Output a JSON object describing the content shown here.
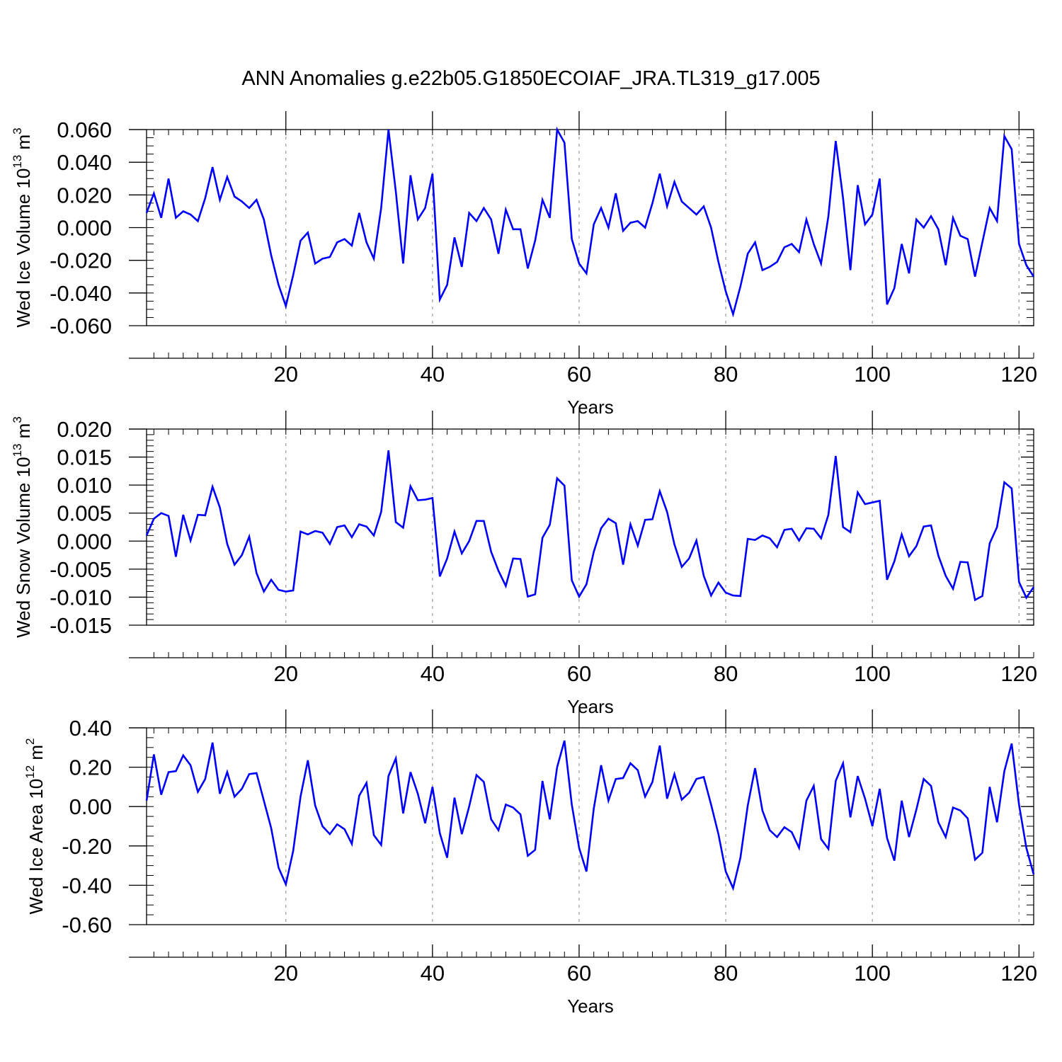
{
  "title": "ANN Anomalies g.e22b05.G1850ECOIAF_JRA.TL319_g17.005",
  "line_color": "#0000ff",
  "grid_color": "#999999",
  "chart_data": [
    {
      "type": "line",
      "ylabel": {
        "main": "Wed Ice Volume 10",
        "sup": "13",
        "unit": " m",
        "unit_sup": "3"
      },
      "xlabel": "Years",
      "xlim": [
        1,
        122
      ],
      "ylim": [
        -0.06,
        0.06
      ],
      "x_ticks": [
        20,
        40,
        60,
        80,
        100,
        120
      ],
      "x_tick_labels": [
        "20",
        "40",
        "60",
        "80",
        "100",
        "120"
      ],
      "y_ticks": [
        -0.06,
        -0.04,
        -0.02,
        0.0,
        0.02,
        0.04,
        0.06
      ],
      "y_tick_labels": [
        "-0.060",
        "-0.040",
        "-0.020",
        "0.000",
        "0.020",
        "0.040",
        "0.060"
      ],
      "y_minor_step": 0.005,
      "grid": "dashed vertical at major x ticks",
      "series": [
        {
          "values": [
            0.009,
            0.021,
            0.006,
            0.03,
            0.006,
            0.01,
            0.008,
            0.004,
            0.018,
            0.037,
            0.017,
            0.031,
            0.019,
            0.016,
            0.012,
            0.017,
            0.005,
            -0.017,
            -0.035,
            -0.048,
            -0.029,
            -0.008,
            -0.003,
            -0.022,
            -0.019,
            -0.018,
            -0.009,
            -0.007,
            -0.011,
            0.009,
            -0.009,
            -0.019,
            0.012,
            0.06,
            0.022,
            -0.022,
            0.032,
            0.005,
            0.012,
            0.033,
            -0.044,
            -0.035,
            -0.006,
            -0.024,
            0.009,
            0.004,
            0.012,
            0.005,
            -0.016,
            0.011,
            -0.001,
            -0.001,
            -0.025,
            -0.008,
            0.017,
            0.006,
            0.06,
            0.052,
            -0.007,
            -0.022,
            -0.028,
            0.002,
            0.012,
            0.0,
            0.021,
            -0.002,
            0.003,
            0.004,
            0.0,
            0.015,
            0.033,
            0.013,
            0.028,
            0.016,
            0.012,
            0.008,
            0.013,
            0.0,
            -0.021,
            -0.039,
            -0.053,
            -0.036,
            -0.016,
            -0.009,
            -0.026,
            -0.024,
            -0.021,
            -0.012,
            -0.01,
            -0.015,
            0.005,
            -0.01,
            -0.022,
            0.007,
            0.053,
            0.018,
            -0.026,
            0.026,
            0.002,
            0.008,
            0.03,
            -0.047,
            -0.037,
            -0.01,
            -0.028,
            0.005,
            0.0,
            0.007,
            -0.001,
            -0.023,
            0.006,
            -0.005,
            -0.007,
            -0.03,
            -0.009,
            0.012,
            0.004,
            0.056,
            0.048,
            -0.01,
            -0.023,
            -0.03
          ]
        }
      ]
    },
    {
      "type": "line",
      "ylabel": {
        "main": "Wed Snow Volume 10",
        "sup": "13",
        "unit": " m",
        "unit_sup": "3"
      },
      "xlabel": "Years",
      "xlim": [
        1,
        122
      ],
      "ylim": [
        -0.015,
        0.02
      ],
      "x_ticks": [
        20,
        40,
        60,
        80,
        100,
        120
      ],
      "x_tick_labels": [
        "20",
        "40",
        "60",
        "80",
        "100",
        "120"
      ],
      "y_ticks": [
        -0.015,
        -0.01,
        -0.005,
        0.0,
        0.005,
        0.01,
        0.015,
        0.02
      ],
      "y_tick_labels": [
        "-0.015",
        "-0.010",
        "-0.005",
        "0.000",
        "0.005",
        "0.010",
        "0.015",
        "0.020"
      ],
      "y_minor_step": 0.001,
      "grid": "dashed vertical at major x ticks",
      "series": [
        {
          "values": [
            0.001,
            0.004,
            0.005,
            0.0045,
            -0.0028,
            0.0047,
            0.0001,
            0.0047,
            0.0046,
            0.0097,
            0.006,
            -0.0005,
            -0.0042,
            -0.0025,
            0.0008,
            -0.0057,
            -0.009,
            -0.0069,
            -0.0087,
            -0.009,
            -0.0088,
            0.0017,
            0.0012,
            0.0018,
            0.0015,
            -0.0005,
            0.0025,
            0.0028,
            0.0007,
            0.003,
            0.0026,
            0.001,
            0.0052,
            0.0162,
            0.0034,
            0.0024,
            0.0098,
            0.0073,
            0.0074,
            0.0077,
            -0.0063,
            -0.0031,
            0.0017,
            -0.0022,
            0.0,
            0.0036,
            0.0036,
            -0.0019,
            -0.0053,
            -0.008,
            -0.0031,
            -0.0032,
            -0.0099,
            -0.0095,
            0.0006,
            0.0029,
            0.0112,
            0.0099,
            -0.007,
            -0.0099,
            -0.0077,
            -0.0019,
            0.0023,
            0.004,
            0.0032,
            -0.0042,
            0.003,
            -0.0008,
            0.0038,
            0.0039,
            0.0089,
            0.0052,
            -0.0006,
            -0.0046,
            -0.0031,
            0.0001,
            -0.0062,
            -0.0097,
            -0.0074,
            -0.0092,
            -0.0097,
            -0.0098,
            0.0004,
            0.0002,
            0.001,
            0.0005,
            -0.0011,
            0.002,
            0.0022,
            0.0001,
            0.0023,
            0.0022,
            0.0005,
            0.0047,
            0.0152,
            0.0025,
            0.0016,
            0.0087,
            0.0066,
            0.0069,
            0.0072,
            -0.0069,
            -0.0036,
            0.0012,
            -0.0027,
            -0.0009,
            0.0026,
            0.0028,
            -0.0026,
            -0.0062,
            -0.0085,
            -0.0037,
            -0.0038,
            -0.0105,
            -0.0098,
            -0.0004,
            0.0025,
            0.0105,
            0.0094,
            -0.0073,
            -0.0101,
            -0.0082
          ]
        }
      ]
    },
    {
      "type": "line",
      "ylabel": {
        "main": "Wed Ice Area 10",
        "sup": "12",
        "unit": " m",
        "unit_sup": "2"
      },
      "xlabel": "Years",
      "xlim": [
        1,
        122
      ],
      "ylim": [
        -0.6,
        0.4
      ],
      "x_ticks": [
        20,
        40,
        60,
        80,
        100,
        120
      ],
      "x_tick_labels": [
        "20",
        "40",
        "60",
        "80",
        "100",
        "120"
      ],
      "y_ticks": [
        -0.6,
        -0.4,
        -0.2,
        0.0,
        0.2,
        0.4
      ],
      "y_tick_labels": [
        "-0.60",
        "-0.40",
        "-0.20",
        "0.00",
        "0.20",
        "0.40"
      ],
      "y_minor_step": 0.05,
      "grid": "dashed vertical at major x ticks",
      "series": [
        {
          "values": [
            0.03,
            0.265,
            0.06,
            0.175,
            0.18,
            0.26,
            0.21,
            0.075,
            0.14,
            0.325,
            0.065,
            0.175,
            0.05,
            0.09,
            0.165,
            0.17,
            0.03,
            -0.11,
            -0.31,
            -0.395,
            -0.225,
            0.05,
            0.235,
            0.005,
            -0.1,
            -0.14,
            -0.09,
            -0.115,
            -0.19,
            0.055,
            0.12,
            -0.145,
            -0.195,
            0.155,
            0.245,
            -0.035,
            0.175,
            0.065,
            -0.085,
            0.1,
            -0.135,
            -0.26,
            0.045,
            -0.14,
            0.0,
            0.16,
            0.125,
            -0.065,
            -0.12,
            0.01,
            -0.005,
            -0.04,
            -0.25,
            -0.22,
            0.13,
            -0.065,
            0.2,
            0.335,
            0.01,
            -0.21,
            -0.33,
            -0.01,
            0.21,
            0.03,
            0.14,
            0.145,
            0.22,
            0.185,
            0.05,
            0.125,
            0.31,
            0.04,
            0.165,
            0.035,
            0.07,
            0.14,
            0.15,
            0.01,
            -0.14,
            -0.33,
            -0.415,
            -0.26,
            0.005,
            0.195,
            -0.02,
            -0.12,
            -0.155,
            -0.105,
            -0.13,
            -0.21,
            0.03,
            0.105,
            -0.165,
            -0.215,
            0.13,
            0.22,
            -0.055,
            0.155,
            0.04,
            -0.1,
            0.09,
            -0.16,
            -0.275,
            0.03,
            -0.155,
            -0.015,
            0.14,
            0.105,
            -0.08,
            -0.155,
            -0.005,
            -0.02,
            -0.06,
            -0.27,
            -0.235,
            0.1,
            -0.08,
            0.18,
            0.32,
            0.01,
            -0.21,
            -0.345
          ]
        }
      ]
    }
  ]
}
